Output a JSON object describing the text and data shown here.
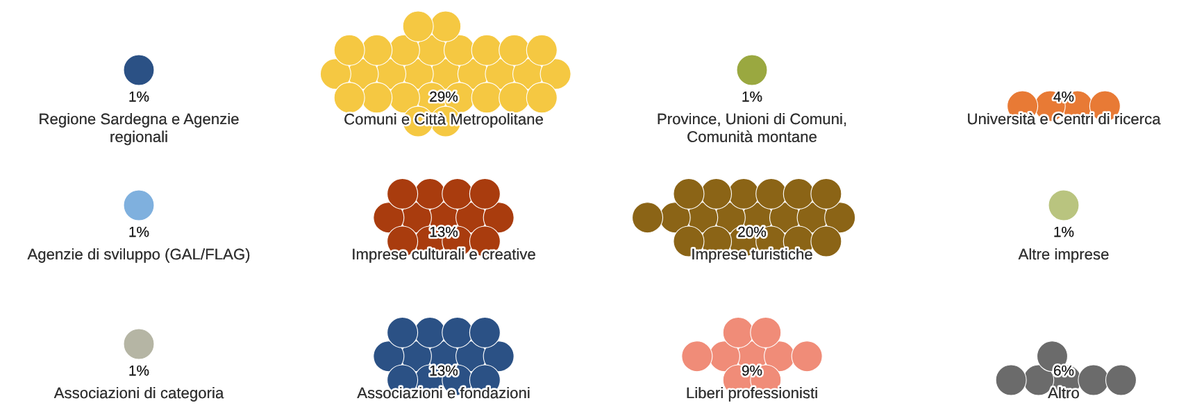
{
  "chart_data": {
    "type": "other",
    "categories": [
      "Regione Sardegna e Agenzie\nregionali",
      "Comuni e Città Metropolitane",
      "Province, Unioni di Comuni,\nComunità montane",
      "Università e Centri di ricerca",
      "Agenzie di sviluppo (GAL/FLAG)",
      "Imprese culturali e creative",
      "Imprese turistiche",
      "Altre imprese",
      "Associazioni di categoria",
      "Associazioni e fondazioni",
      "Liberi professionisti",
      "Altro"
    ],
    "values": [
      1,
      29,
      1,
      4,
      1,
      13,
      20,
      1,
      1,
      13,
      9,
      6
    ],
    "value_labels": [
      "1%",
      "29%",
      "1%",
      "4%",
      "1%",
      "13%",
      "20%",
      "1%",
      "1%",
      "13%",
      "9%",
      "6%"
    ],
    "colors": [
      "#2b5185",
      "#f5c842",
      "#9aa840",
      "#e87a35",
      "#7fb0de",
      "#a93c0e",
      "#8b6416",
      "#b9c47f",
      "#b5b5a4",
      "#2b5185",
      "#f08c78",
      "#6b6b6b"
    ]
  }
}
